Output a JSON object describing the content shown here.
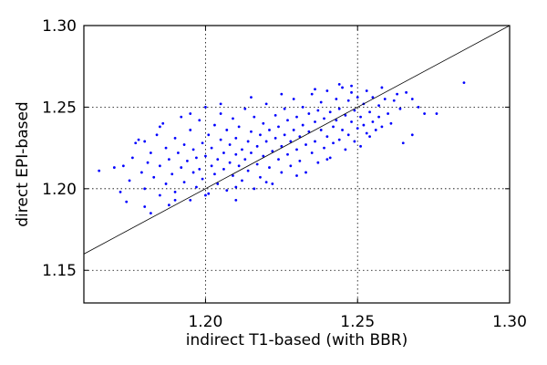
{
  "chart_data": {
    "type": "scatter",
    "title": "",
    "xlabel": "indirect T1-based (with BBR)",
    "ylabel": "direct EPI-based",
    "xlim": [
      1.16,
      1.3
    ],
    "ylim": [
      1.13,
      1.3
    ],
    "xticks": [
      1.2,
      1.25,
      1.3
    ],
    "yticks": [
      1.15,
      1.2,
      1.25,
      1.3
    ],
    "xtick_labels": [
      "1.20",
      "1.25",
      "1.30"
    ],
    "ytick_labels": [
      "1.15",
      "1.20",
      "1.25",
      "1.30"
    ],
    "grid": true,
    "legend": "none",
    "reference_line": {
      "label": "identity",
      "x": [
        1.16,
        1.3
      ],
      "y": [
        1.16,
        1.3
      ]
    },
    "marker_color": "#0000ff",
    "line_color": "#000000",
    "series": [
      {
        "points": [
          [
            1.165,
            1.211
          ],
          [
            1.17,
            1.213
          ],
          [
            1.172,
            1.198
          ],
          [
            1.173,
            1.214
          ],
          [
            1.174,
            1.192
          ],
          [
            1.175,
            1.205
          ],
          [
            1.176,
            1.219
          ],
          [
            1.177,
            1.228
          ],
          [
            1.178,
            1.23
          ],
          [
            1.179,
            1.21
          ],
          [
            1.18,
            1.189
          ],
          [
            1.18,
            1.2
          ],
          [
            1.181,
            1.216
          ],
          [
            1.182,
            1.185
          ],
          [
            1.182,
            1.222
          ],
          [
            1.183,
            1.207
          ],
          [
            1.184,
            1.233
          ],
          [
            1.185,
            1.196
          ],
          [
            1.185,
            1.214
          ],
          [
            1.186,
            1.24
          ],
          [
            1.187,
            1.203
          ],
          [
            1.187,
            1.225
          ],
          [
            1.188,
            1.19
          ],
          [
            1.188,
            1.218
          ],
          [
            1.189,
            1.209
          ],
          [
            1.19,
            1.231
          ],
          [
            1.19,
            1.198
          ],
          [
            1.191,
            1.222
          ],
          [
            1.192,
            1.213
          ],
          [
            1.192,
            1.244
          ],
          [
            1.193,
            1.204
          ],
          [
            1.193,
            1.227
          ],
          [
            1.194,
            1.217
          ],
          [
            1.195,
            1.193
          ],
          [
            1.195,
            1.236
          ],
          [
            1.196,
            1.21
          ],
          [
            1.196,
            1.224
          ],
          [
            1.197,
            1.201
          ],
          [
            1.197,
            1.219
          ],
          [
            1.198,
            1.242
          ],
          [
            1.198,
            1.212
          ],
          [
            1.199,
            1.228
          ],
          [
            1.199,
            1.206
          ],
          [
            1.2,
            1.22
          ],
          [
            1.2,
            1.25
          ],
          [
            1.201,
            1.197
          ],
          [
            1.201,
            1.233
          ],
          [
            1.202,
            1.214
          ],
          [
            1.202,
            1.225
          ],
          [
            1.203,
            1.209
          ],
          [
            1.203,
            1.239
          ],
          [
            1.204,
            1.218
          ],
          [
            1.204,
            1.203
          ],
          [
            1.205,
            1.23
          ],
          [
            1.205,
            1.246
          ],
          [
            1.206,
            1.212
          ],
          [
            1.206,
            1.222
          ],
          [
            1.207,
            1.199
          ],
          [
            1.207,
            1.236
          ],
          [
            1.208,
            1.216
          ],
          [
            1.208,
            1.227
          ],
          [
            1.209,
            1.208
          ],
          [
            1.209,
            1.243
          ],
          [
            1.21,
            1.221
          ],
          [
            1.21,
            1.231
          ],
          [
            1.21,
            1.193
          ],
          [
            1.211,
            1.214
          ],
          [
            1.211,
            1.238
          ],
          [
            1.212,
            1.224
          ],
          [
            1.212,
            1.205
          ],
          [
            1.213,
            1.249
          ],
          [
            1.213,
            1.218
          ],
          [
            1.214,
            1.229
          ],
          [
            1.214,
            1.211
          ],
          [
            1.215,
            1.235
          ],
          [
            1.215,
            1.222
          ],
          [
            1.216,
            1.2
          ],
          [
            1.216,
            1.244
          ],
          [
            1.217,
            1.226
          ],
          [
            1.217,
            1.215
          ],
          [
            1.218,
            1.233
          ],
          [
            1.218,
            1.207
          ],
          [
            1.219,
            1.24
          ],
          [
            1.219,
            1.22
          ],
          [
            1.22,
            1.252
          ],
          [
            1.22,
            1.229
          ],
          [
            1.221,
            1.213
          ],
          [
            1.221,
            1.236
          ],
          [
            1.222,
            1.223
          ],
          [
            1.222,
            1.203
          ],
          [
            1.223,
            1.245
          ],
          [
            1.223,
            1.231
          ],
          [
            1.224,
            1.218
          ],
          [
            1.224,
            1.238
          ],
          [
            1.225,
            1.226
          ],
          [
            1.225,
            1.21
          ],
          [
            1.226,
            1.249
          ],
          [
            1.226,
            1.233
          ],
          [
            1.227,
            1.221
          ],
          [
            1.227,
            1.242
          ],
          [
            1.228,
            1.229
          ],
          [
            1.228,
            1.214
          ],
          [
            1.229,
            1.255
          ],
          [
            1.229,
            1.236
          ],
          [
            1.23,
            1.224
          ],
          [
            1.23,
            1.244
          ],
          [
            1.231,
            1.232
          ],
          [
            1.231,
            1.217
          ],
          [
            1.232,
            1.25
          ],
          [
            1.232,
            1.239
          ],
          [
            1.233,
            1.227
          ],
          [
            1.233,
            1.21
          ],
          [
            1.234,
            1.246
          ],
          [
            1.234,
            1.235
          ],
          [
            1.235,
            1.222
          ],
          [
            1.235,
            1.258
          ],
          [
            1.236,
            1.241
          ],
          [
            1.236,
            1.229
          ],
          [
            1.237,
            1.248
          ],
          [
            1.237,
            1.216
          ],
          [
            1.238,
            1.236
          ],
          [
            1.238,
            1.253
          ],
          [
            1.239,
            1.225
          ],
          [
            1.239,
            1.243
          ],
          [
            1.24,
            1.232
          ],
          [
            1.24,
            1.26
          ],
          [
            1.241,
            1.219
          ],
          [
            1.241,
            1.247
          ],
          [
            1.242,
            1.238
          ],
          [
            1.242,
            1.228
          ],
          [
            1.243,
            1.255
          ],
          [
            1.243,
            1.242
          ],
          [
            1.244,
            1.23
          ],
          [
            1.244,
            1.249
          ],
          [
            1.245,
            1.236
          ],
          [
            1.245,
            1.262
          ],
          [
            1.246,
            1.224
          ],
          [
            1.246,
            1.245
          ],
          [
            1.247,
            1.254
          ],
          [
            1.247,
            1.233
          ],
          [
            1.248,
            1.241
          ],
          [
            1.248,
            1.259
          ],
          [
            1.249,
            1.229
          ],
          [
            1.249,
            1.248
          ],
          [
            1.25,
            1.237
          ],
          [
            1.25,
            1.256
          ],
          [
            1.251,
            1.244
          ],
          [
            1.251,
            1.226
          ],
          [
            1.252,
            1.252
          ],
          [
            1.252,
            1.239
          ],
          [
            1.253,
            1.26
          ],
          [
            1.253,
            1.234
          ],
          [
            1.254,
            1.247
          ],
          [
            1.255,
            1.256
          ],
          [
            1.255,
            1.241
          ],
          [
            1.256,
            1.236
          ],
          [
            1.257,
            1.251
          ],
          [
            1.257,
            1.244
          ],
          [
            1.258,
            1.238
          ],
          [
            1.259,
            1.255
          ],
          [
            1.26,
            1.246
          ],
          [
            1.261,
            1.24
          ],
          [
            1.262,
            1.254
          ],
          [
            1.264,
            1.249
          ],
          [
            1.265,
            1.228
          ],
          [
            1.266,
            1.259
          ],
          [
            1.268,
            1.255
          ],
          [
            1.268,
            1.233
          ],
          [
            1.272,
            1.246
          ],
          [
            1.276,
            1.246
          ],
          [
            1.285,
            1.265
          ],
          [
            1.27,
            1.25
          ],
          [
            1.263,
            1.258
          ],
          [
            1.258,
            1.262
          ],
          [
            1.254,
            1.232
          ],
          [
            1.248,
            1.263
          ],
          [
            1.244,
            1.264
          ],
          [
            1.24,
            1.218
          ],
          [
            1.236,
            1.261
          ],
          [
            1.23,
            1.208
          ],
          [
            1.225,
            1.258
          ],
          [
            1.22,
            1.204
          ],
          [
            1.215,
            1.256
          ],
          [
            1.21,
            1.201
          ],
          [
            1.205,
            1.252
          ],
          [
            1.2,
            1.196
          ],
          [
            1.195,
            1.246
          ],
          [
            1.19,
            1.193
          ],
          [
            1.185,
            1.238
          ],
          [
            1.18,
            1.229
          ]
        ]
      }
    ]
  }
}
